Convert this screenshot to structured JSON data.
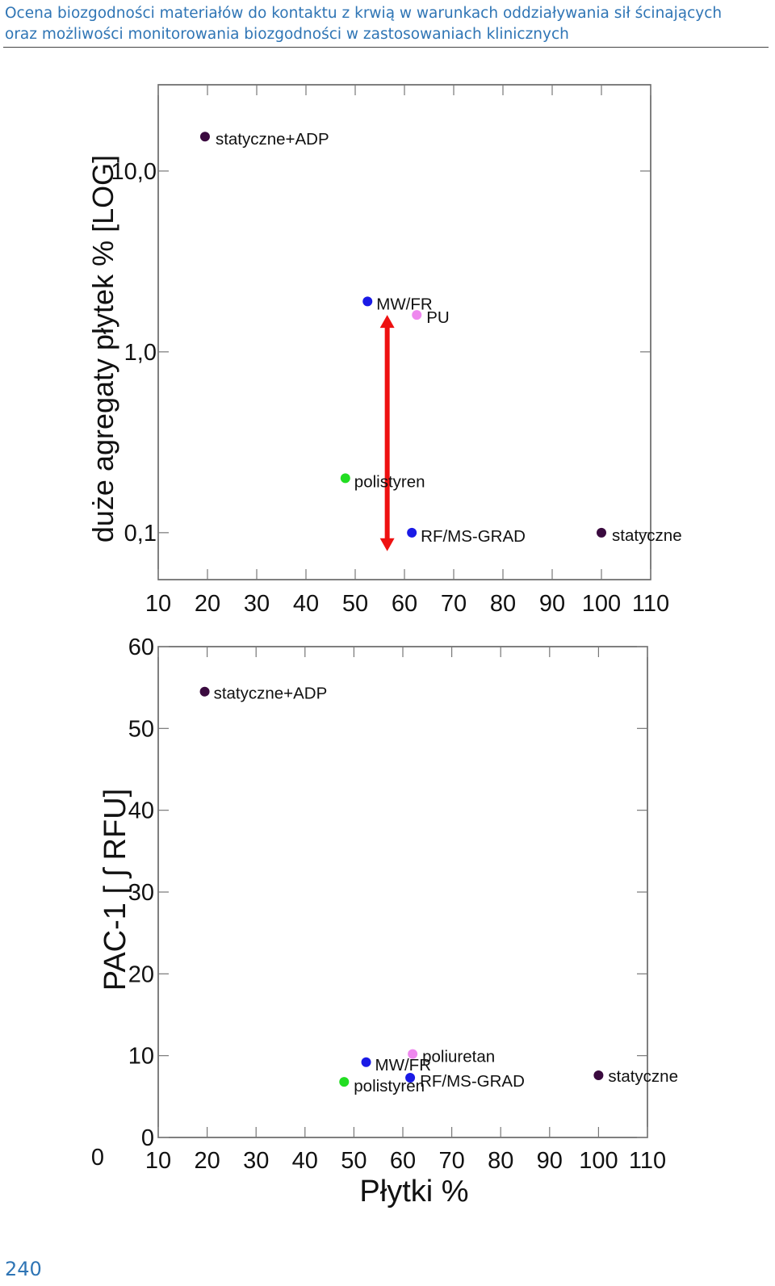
{
  "header": {
    "line1": "Ocena biozgodności materiałów do kontaktu z krwią w warunkach oddziaływania sił ścinających",
    "line2": "oraz możliwości monitorowania biozgodności w zastosowaniach klinicznych"
  },
  "page_number": "240",
  "colors": {
    "header_text": "#2f75b5",
    "arrow": "#ee1111"
  },
  "chart_data": [
    {
      "type": "scatter",
      "title": "",
      "xlabel": "",
      "ylabel": "duże agregaty płytek % [LOG]",
      "y_scale": "log",
      "xlim": [
        10,
        110
      ],
      "ylim": [
        0.055,
        30
      ],
      "x_ticks": [
        "10",
        "20",
        "30",
        "40",
        "50",
        "60",
        "70",
        "80",
        "90",
        "100",
        "110"
      ],
      "y_ticks": [
        {
          "value": 0.1,
          "label": "0,1"
        },
        {
          "value": 1.0,
          "label": "1,0"
        },
        {
          "value": 10.0,
          "label": "10,0"
        }
      ],
      "grid": false,
      "points": [
        {
          "label": "statyczne+ADP",
          "x": 19.5,
          "y": 15.5,
          "color": "#3a0a3f"
        },
        {
          "label": "MW/FR",
          "x": 52.5,
          "y": 1.9,
          "color": "#1a1ae6"
        },
        {
          "label": "PU",
          "x": 62.5,
          "y": 1.6,
          "color": "#ee88ee"
        },
        {
          "label": "polistyren",
          "x": 48.0,
          "y": 0.2,
          "color": "#22dd22"
        },
        {
          "label": "RF/MS-GRAD",
          "x": 61.5,
          "y": 0.1,
          "color": "#1a1ae6"
        },
        {
          "label": "statyczne",
          "x": 100.0,
          "y": 0.1,
          "color": "#3a0a3f"
        }
      ],
      "annotations": [
        {
          "type": "double-arrow",
          "x": 56.5,
          "y_from": 1.6,
          "y_to": 0.079,
          "color": "#ee1111"
        }
      ]
    },
    {
      "type": "scatter",
      "title": "",
      "xlabel": "Płytki %",
      "ylabel": "PAC-1 [ ∫ RFU]",
      "xlim": [
        10,
        110
      ],
      "ylim": [
        0,
        60
      ],
      "x_ticks": [
        "10",
        "20",
        "30",
        "40",
        "50",
        "60",
        "70",
        "80",
        "90",
        "100",
        "110"
      ],
      "y_ticks": [
        "0",
        "10",
        "20",
        "30",
        "40",
        "50",
        "60"
      ],
      "x_origin_label": "0",
      "grid": false,
      "points": [
        {
          "label": "statyczne+ADP",
          "x": 19.5,
          "y": 54.5,
          "color": "#3a0a3f"
        },
        {
          "label": "MW/FR",
          "x": 52.5,
          "y": 9.2,
          "color": "#1a1ae6"
        },
        {
          "label": "poliuretan",
          "x": 62.0,
          "y": 10.2,
          "color": "#ee88ee"
        },
        {
          "label": "polistyren",
          "x": 48.0,
          "y": 6.8,
          "color": "#22dd22"
        },
        {
          "label": "RF/MS-GRAD",
          "x": 61.5,
          "y": 7.3,
          "color": "#1a1ae6"
        },
        {
          "label": "statyczne",
          "x": 100.0,
          "y": 7.6,
          "color": "#3a0a3f"
        }
      ]
    }
  ]
}
